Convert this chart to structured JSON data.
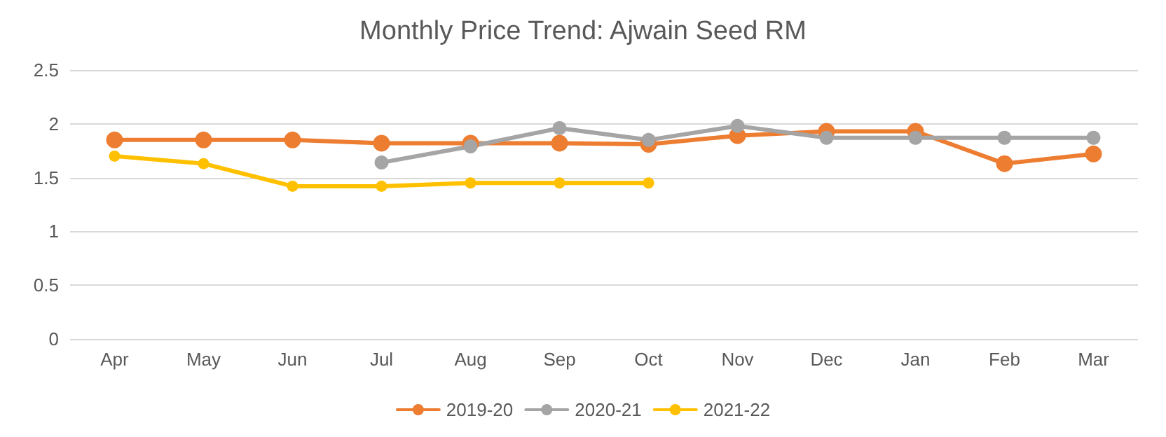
{
  "chart_data": {
    "type": "line",
    "title": "Monthly Price Trend: Ajwain Seed RM",
    "categories": [
      "Apr",
      "May",
      "Jun",
      "Jul",
      "Aug",
      "Sep",
      "Oct",
      "Nov",
      "Dec",
      "Jan",
      "Feb",
      "Mar"
    ],
    "series": [
      {
        "name": "2019-20",
        "color": "#ed7d31",
        "values": [
          1.85,
          1.85,
          1.85,
          1.82,
          1.82,
          1.82,
          1.81,
          1.89,
          1.93,
          1.93,
          1.63,
          1.72
        ]
      },
      {
        "name": "2020-21",
        "color": "#a5a5a5",
        "values": [
          null,
          null,
          null,
          1.64,
          1.79,
          1.96,
          1.85,
          1.98,
          1.87,
          1.87,
          1.87,
          1.87
        ]
      },
      {
        "name": "2021-22",
        "color": "#ffc000",
        "values": [
          1.7,
          1.63,
          1.42,
          1.42,
          1.45,
          1.45,
          1.45,
          null,
          null,
          null,
          null,
          null
        ]
      }
    ],
    "ylim": [
      0,
      2.5
    ],
    "yticks": [
      0,
      0.5,
      1,
      1.5,
      2,
      2.5
    ],
    "grid": "y",
    "legend": "bottom",
    "marker": "circle",
    "line_style": "solid"
  }
}
